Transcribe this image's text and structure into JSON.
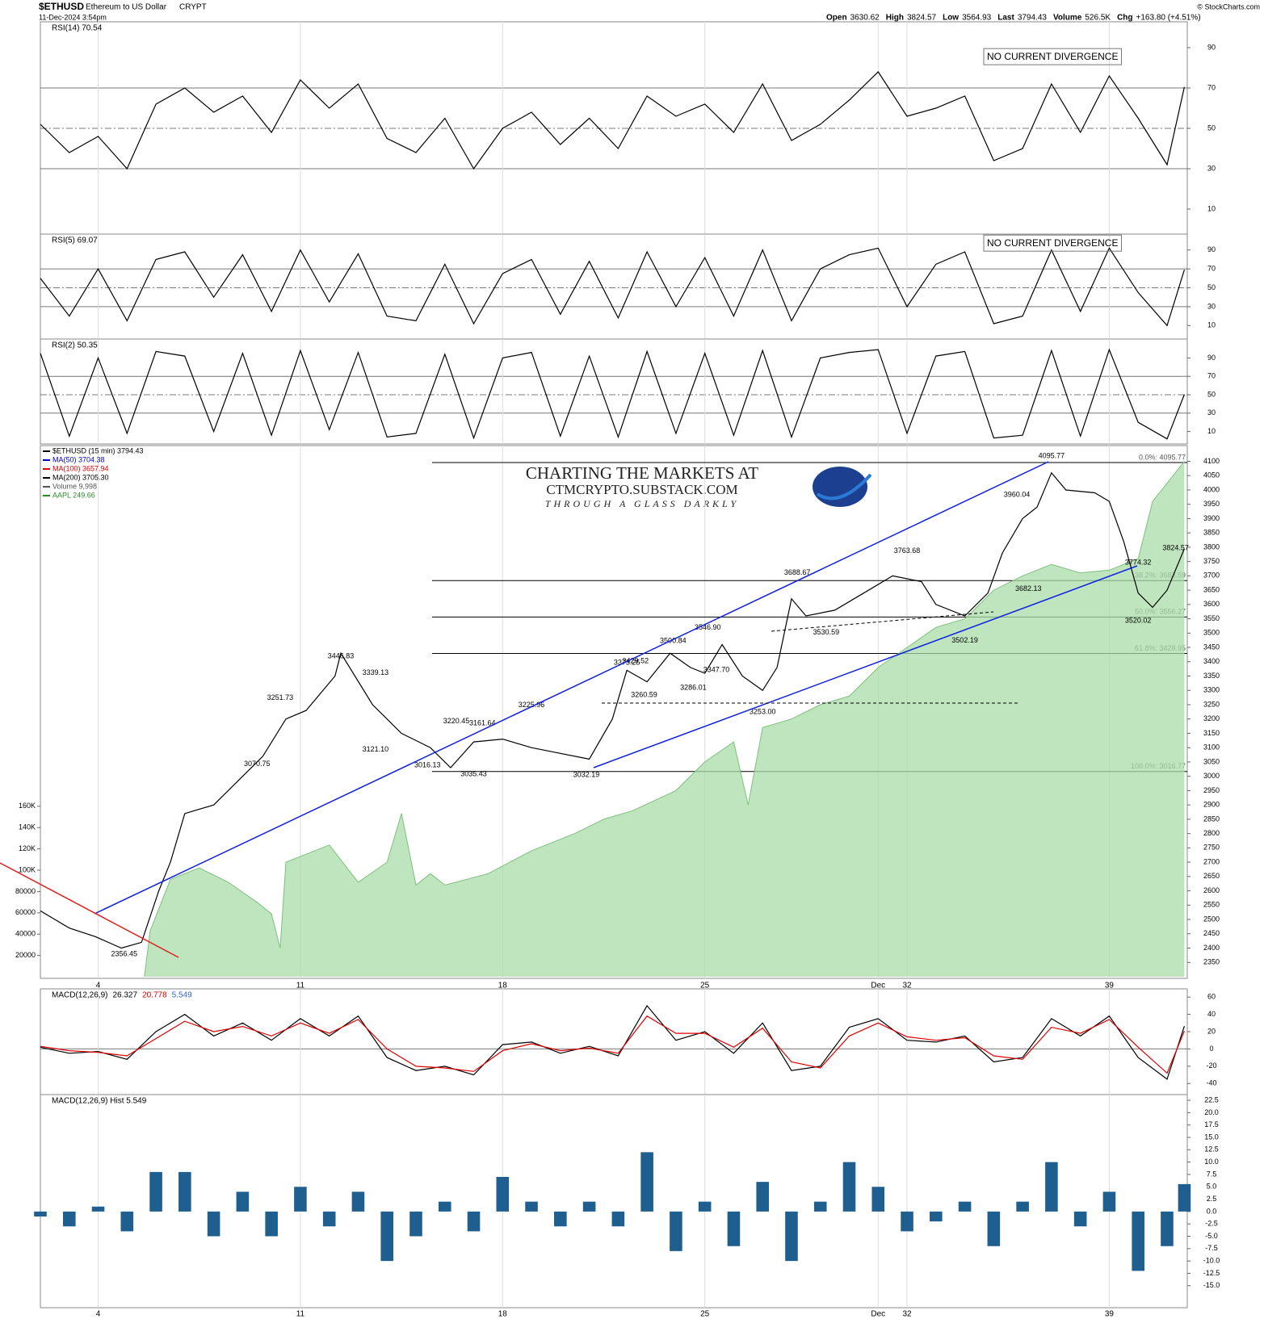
{
  "header": {
    "symbol": "$ETHUSD",
    "name": "Ethereum to US Dollar",
    "exchange": "CRYPT",
    "datetime": "11-Dec-2024 3:54pm",
    "quotes": [
      {
        "label": "Open",
        "value": "3630.62"
      },
      {
        "label": "High",
        "value": "3824.57"
      },
      {
        "label": "Low",
        "value": "3564.93"
      },
      {
        "label": "Last",
        "value": "3794.43"
      },
      {
        "label": "Volume",
        "value": "526.5K"
      },
      {
        "label": "Chg",
        "value": "+163.80 (+4.51%)"
      }
    ],
    "credit": "© StockCharts.com"
  },
  "watermark": {
    "line1": "CHARTING THE MARKETS AT",
    "line2": "CTMCRYPTO.SUBSTACK.COM",
    "line3": "THROUGH A GLASS DARKLY"
  },
  "chart_data": [
    {
      "type": "line",
      "title": "RSI(14) 70.54",
      "xlim": [
        2,
        41.7
      ],
      "ylim": [
        0,
        100
      ],
      "yticks": [
        10,
        30,
        50,
        70,
        90
      ],
      "reference_lines": [
        30,
        50,
        70
      ],
      "notes": [
        "NO CURRENT DIVERGENCE"
      ],
      "x": [
        2,
        3,
        4,
        5,
        6,
        7,
        8,
        9,
        10,
        11,
        12,
        13,
        14,
        15,
        16,
        17,
        18,
        19,
        20,
        21,
        22,
        23,
        24,
        25,
        26,
        27,
        28,
        29,
        30,
        31,
        32,
        33,
        34,
        35,
        36,
        37,
        38,
        39,
        40,
        41,
        41.6
      ],
      "series": [
        {
          "color": "#000000",
          "values": [
            52,
            38,
            46,
            30,
            62,
            70,
            58,
            66,
            48,
            74,
            60,
            72,
            45,
            38,
            55,
            30,
            50,
            58,
            42,
            55,
            40,
            66,
            56,
            62,
            48,
            72,
            44,
            52,
            64,
            78,
            56,
            60,
            66,
            34,
            40,
            72,
            48,
            76,
            55,
            32,
            70.54
          ]
        }
      ]
    },
    {
      "type": "line",
      "title": "RSI(5) 69.07",
      "xlim": [
        2,
        41.7
      ],
      "ylim": [
        0,
        100
      ],
      "yticks": [
        10,
        30,
        50,
        70,
        90
      ],
      "reference_lines": [
        30,
        50,
        70
      ],
      "notes": [
        "NO CURRENT DIVERGENCE"
      ],
      "x": [
        2,
        3,
        4,
        5,
        6,
        7,
        8,
        9,
        10,
        11,
        12,
        13,
        14,
        15,
        16,
        17,
        18,
        19,
        20,
        21,
        22,
        23,
        24,
        25,
        26,
        27,
        28,
        29,
        30,
        31,
        32,
        33,
        34,
        35,
        36,
        37,
        38,
        39,
        40,
        41,
        41.6
      ],
      "series": [
        {
          "color": "#000000",
          "values": [
            60,
            20,
            70,
            15,
            80,
            88,
            40,
            85,
            25,
            90,
            35,
            86,
            20,
            15,
            75,
            12,
            65,
            80,
            22,
            78,
            18,
            88,
            30,
            82,
            20,
            90,
            15,
            70,
            85,
            92,
            30,
            75,
            88,
            12,
            20,
            90,
            25,
            92,
            45,
            10,
            69.07
          ]
        }
      ]
    },
    {
      "type": "line",
      "title": "RSI(2) 50.35",
      "xlim": [
        2,
        41.7
      ],
      "ylim": [
        0,
        100
      ],
      "yticks": [
        10,
        30,
        50,
        70,
        90
      ],
      "reference_lines": [
        30,
        50,
        70
      ],
      "x": [
        2,
        3,
        4,
        5,
        6,
        7,
        8,
        9,
        10,
        11,
        12,
        13,
        14,
        15,
        16,
        17,
        18,
        19,
        20,
        21,
        22,
        23,
        24,
        25,
        26,
        27,
        28,
        29,
        30,
        31,
        32,
        33,
        34,
        35,
        36,
        37,
        38,
        39,
        40,
        41,
        41.6
      ],
      "series": [
        {
          "color": "#000000",
          "values": [
            95,
            5,
            90,
            8,
            97,
            92,
            10,
            95,
            6,
            98,
            12,
            96,
            4,
            8,
            94,
            3,
            90,
            96,
            5,
            92,
            4,
            97,
            8,
            95,
            6,
            98,
            4,
            90,
            96,
            99,
            8,
            92,
            97,
            3,
            6,
            98,
            5,
            99,
            20,
            2,
            50.35
          ]
        }
      ]
    },
    {
      "type": "line",
      "xlim": [
        2,
        41.7
      ],
      "ylim": [
        2300,
        4138
      ],
      "yticks": [
        2350,
        2400,
        2450,
        2500,
        2550,
        2600,
        2650,
        2700,
        2750,
        2800,
        2850,
        2900,
        2950,
        3000,
        3050,
        3100,
        3150,
        3200,
        3250,
        3300,
        3350,
        3400,
        3450,
        3500,
        3550,
        3600,
        3650,
        3700,
        3750,
        3800,
        3850,
        3900,
        3950,
        4000,
        4050,
        4100
      ],
      "y2lim": [
        0,
        494000
      ],
      "y2ticks": [
        20000,
        40000,
        60000,
        80000,
        {
          "value": 100000,
          "label": "100K"
        },
        {
          "value": 120000,
          "label": "120K"
        },
        {
          "value": 140000,
          "label": "140K"
        },
        {
          "value": 160000,
          "label": "160K"
        }
      ],
      "xticks": [
        4,
        11,
        18,
        25,
        {
          "value": 31,
          "label": "Dec"
        },
        32,
        39
      ],
      "legend": [
        {
          "text": "$ETHUSD (15 min) 3794.43",
          "color": "#000000"
        },
        {
          "text": "MA(50) 3704.38",
          "color": "#0000cc"
        },
        {
          "text": "MA(100) 3657.94",
          "color": "#dd0000"
        },
        {
          "text": "MA(200) 3705.30",
          "color": "#000000"
        },
        {
          "text": "Volume 9,998",
          "color": "#555555"
        },
        {
          "text": "AAPL 249.66",
          "color": "#2a8a2a"
        }
      ],
      "series": [
        {
          "color": "#a8dca8",
          "style": "area",
          "x": [
            5.6,
            5.8,
            6.5,
            7.5,
            8.5,
            9.5,
            10,
            10.3,
            10.5,
            12,
            13,
            14,
            14.5,
            15,
            15.5,
            16,
            17.5,
            19,
            20.5,
            21.5,
            22.5,
            24,
            25,
            26,
            26.5,
            27,
            28,
            29,
            30,
            31,
            32,
            33,
            34,
            35,
            36,
            37,
            38,
            39,
            40,
            40.5,
            41.6
          ],
          "values": [
            2300,
            2460,
            2640,
            2680,
            2630,
            2560,
            2520,
            2400,
            2700,
            2760,
            2630,
            2700,
            2870,
            2620,
            2660,
            2620,
            2660,
            2740,
            2800,
            2850,
            2880,
            2950,
            3050,
            3120,
            2900,
            3170,
            3200,
            3250,
            3280,
            3380,
            3450,
            3520,
            3550,
            3650,
            3700,
            3740,
            3710,
            3720,
            3760,
            3960,
            4100
          ]
        },
        {
          "color": "#000000",
          "x": [
            2,
            3,
            3.9,
            4.8,
            5.5,
            6.1,
            6.5,
            7,
            8,
            9,
            9.7,
            10.5,
            11.2,
            12.2,
            12.4,
            13.5,
            14.5,
            15.5,
            16.2,
            17,
            18,
            19,
            20,
            21,
            21.8,
            22.3,
            23,
            23.8,
            24.5,
            25,
            25.6,
            26.3,
            27,
            27.5,
            28,
            28.5,
            29.5,
            30.5,
            31.5,
            32.5,
            33,
            34,
            34.8,
            35.3,
            36,
            36.5,
            37,
            37.5,
            38.5,
            39,
            39.5,
            40,
            40.5,
            41,
            41.6
          ],
          "values": [
            2530,
            2470,
            2440,
            2400,
            2420,
            2600,
            2700,
            2870,
            2900,
            3000,
            3070,
            3200,
            3230,
            3350,
            3430,
            3250,
            3150,
            3100,
            3030,
            3120,
            3130,
            3100,
            3080,
            3060,
            3200,
            3370,
            3330,
            3430,
            3380,
            3360,
            3460,
            3350,
            3300,
            3380,
            3620,
            3560,
            3580,
            3640,
            3700,
            3680,
            3600,
            3560,
            3640,
            3780,
            3900,
            3940,
            4060,
            4000,
            3990,
            3960,
            3820,
            3640,
            3590,
            3650,
            3794.43
          ]
        }
      ],
      "fib_levels": [
        {
          "value": 4095.77,
          "label": "0.0%: 4095.77"
        },
        {
          "value": 3683.59,
          "label": "38.2%: 3683.59"
        },
        {
          "value": 3556.27,
          "label": "50.0%: 3556.27"
        },
        {
          "value": 3428.95,
          "label": "61.8%: 3428.95"
        },
        {
          "value": 3016.77,
          "label": "100.0%: 3016.77"
        }
      ],
      "annotations": [
        {
          "x": 4.9,
          "value": 2356.45,
          "label": "2356.45"
        },
        {
          "x": 9.5,
          "value": 3070.75,
          "label": "3070.75"
        },
        {
          "x": 10.3,
          "value": 3251.73,
          "label": "3251.73"
        },
        {
          "x": 12.4,
          "value": 3446.83,
          "label": "3446.83"
        },
        {
          "x": 13.6,
          "value": 3339.13,
          "label": "3339.13"
        },
        {
          "x": 13.6,
          "value": 3121.1,
          "label": "3121.10"
        },
        {
          "x": 15.4,
          "value": 3016.13,
          "label": "3016.13"
        },
        {
          "x": 16.4,
          "value": 3220.45,
          "label": "3220.45"
        },
        {
          "x": 17.3,
          "value": 3161.64,
          "label": "3161.64"
        },
        {
          "x": 17.0,
          "value": 3035.43,
          "label": "3035.43"
        },
        {
          "x": 19.0,
          "value": 3225.96,
          "label": "3225.96"
        },
        {
          "x": 20.9,
          "value": 3032.19,
          "label": "3032.19"
        },
        {
          "x": 22.3,
          "value": 3373.25,
          "label": "3373.25"
        },
        {
          "x": 22.6,
          "value": 3429.52,
          "label": "3429.52"
        },
        {
          "x": 22.9,
          "value": 3260.59,
          "label": "3260.59"
        },
        {
          "x": 23.9,
          "value": 3500.84,
          "label": "3500.84"
        },
        {
          "x": 24.6,
          "value": 3286.01,
          "label": "3286.01"
        },
        {
          "x": 25.1,
          "value": 3546.9,
          "label": "3546.90"
        },
        {
          "x": 25.4,
          "value": 3347.7,
          "label": "3347.70"
        },
        {
          "x": 27.0,
          "value": 3253.0,
          "label": "3253.00"
        },
        {
          "x": 28.2,
          "value": 3688.67,
          "label": "3688.67"
        },
        {
          "x": 29.2,
          "value": 3530.59,
          "label": "3530.59"
        },
        {
          "x": 32.0,
          "value": 3763.68,
          "label": "3763.68"
        },
        {
          "x": 34.0,
          "value": 3502.19,
          "label": "3502.19"
        },
        {
          "x": 35.8,
          "value": 3960.04,
          "label": "3960.04"
        },
        {
          "x": 36.2,
          "value": 3682.13,
          "label": "3682.13"
        },
        {
          "x": 37.0,
          "value": 4095.77,
          "label": "4095.77"
        },
        {
          "x": 40.0,
          "value": 3774.32,
          "label": "3774.32"
        },
        {
          "x": 40.0,
          "value": 3520.02,
          "label": "3520.02"
        },
        {
          "x": 41.3,
          "value": 3824.57,
          "label": "3824.57"
        }
      ]
    },
    {
      "type": "line",
      "title": "MACD(12,26,9)",
      "xlim": [
        2,
        41.7
      ],
      "ylim": [
        -50,
        62
      ],
      "yticks": [
        -40,
        -20,
        0,
        20,
        40,
        60
      ],
      "reference_lines": [
        0
      ],
      "legend": [
        {
          "text": "26.327",
          "color": "#000000"
        },
        {
          "text": "20.778",
          "color": "#dd0000"
        },
        {
          "text": "5.549",
          "color": "#3366cc"
        }
      ],
      "x": [
        2,
        3,
        4,
        5,
        6,
        7,
        8,
        9,
        10,
        11,
        12,
        13,
        14,
        15,
        16,
        17,
        18,
        19,
        20,
        21,
        22,
        23,
        24,
        25,
        26,
        27,
        28,
        29,
        30,
        31,
        32,
        33,
        34,
        35,
        36,
        37,
        38,
        39,
        40,
        41,
        41.6
      ],
      "series": [
        {
          "color": "#000000",
          "values": [
            2,
            -5,
            -3,
            -12,
            20,
            40,
            15,
            30,
            10,
            35,
            15,
            38,
            -10,
            -25,
            -20,
            -30,
            5,
            8,
            -5,
            3,
            -8,
            50,
            10,
            20,
            -5,
            30,
            -25,
            -20,
            25,
            35,
            10,
            8,
            15,
            -15,
            -10,
            35,
            15,
            38,
            -10,
            -35,
            26.327
          ]
        },
        {
          "color": "#dd0000",
          "values": [
            3,
            -2,
            -4,
            -8,
            12,
            32,
            20,
            26,
            15,
            30,
            18,
            34,
            0,
            -20,
            -22,
            -26,
            -2,
            6,
            -2,
            1,
            -5,
            38,
            18,
            18,
            2,
            24,
            -15,
            -22,
            15,
            30,
            14,
            10,
            13,
            -8,
            -12,
            25,
            18,
            34,
            2,
            -28,
            20.778
          ]
        }
      ]
    },
    {
      "type": "bar",
      "title": "MACD(12,26,9) Hist 5.549",
      "color": "#1f5f8f",
      "xlim": [
        2,
        41.7
      ],
      "ylim": [
        -17,
        23
      ],
      "yticks": [
        {
          "value": -15,
          "label": "-15.0"
        },
        -12.5,
        {
          "value": -10,
          "label": "-10.0"
        },
        -7.5,
        {
          "value": -5,
          "label": "-5.0"
        },
        -2.5,
        {
          "value": 0,
          "label": "0.0"
        },
        2.5,
        {
          "value": 5,
          "label": "5.0"
        },
        7.5,
        {
          "value": 10,
          "label": "10.0"
        },
        12.5,
        {
          "value": 15,
          "label": "15.0"
        },
        17.5,
        {
          "value": 20,
          "label": "20.0"
        },
        22.5
      ],
      "x": [
        2,
        3,
        4,
        5,
        6,
        7,
        8,
        9,
        10,
        11,
        12,
        13,
        14,
        15,
        16,
        17,
        18,
        19,
        20,
        21,
        22,
        23,
        24,
        25,
        26,
        27,
        28,
        29,
        30,
        31,
        32,
        33,
        34,
        35,
        36,
        37,
        38,
        39,
        40,
        41,
        41.6
      ],
      "values": [
        -1,
        -3,
        1,
        -4,
        8,
        8,
        -5,
        4,
        -5,
        5,
        -3,
        4,
        -10,
        -5,
        2,
        -4,
        7,
        2,
        -3,
        2,
        -3,
        12,
        -8,
        2,
        -7,
        6,
        -10,
        2,
        10,
        5,
        -4,
        -2,
        2,
        -7,
        2,
        10,
        -3,
        4,
        -12,
        -7,
        5.549
      ]
    }
  ]
}
